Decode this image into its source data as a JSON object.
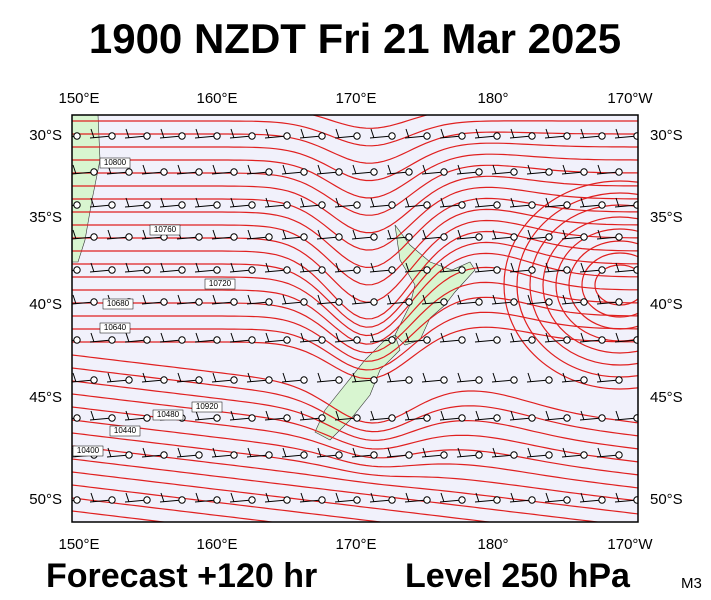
{
  "header": {
    "title": "1900 NZDT Fri 21 Mar 2025"
  },
  "map": {
    "top_labels": [
      "150°E",
      "160°E",
      "170°E",
      "180°",
      "170°W"
    ],
    "bottom_labels": [
      "150°E",
      "160°E",
      "170°E",
      "180°",
      "170°W"
    ],
    "left_labels": [
      "30°S",
      "35°S",
      "40°S",
      "45°S",
      "50°S"
    ],
    "right_labels": [
      "30°S",
      "35°S",
      "40°S",
      "45°S",
      "50°S"
    ],
    "contour_labels": [
      "10800",
      "10760",
      "10720",
      "10680",
      "10640",
      "10480",
      "10440",
      "10400",
      "10920"
    ]
  },
  "footer": {
    "forecast": "Forecast +120 hr",
    "level": "Level 250 hPa",
    "code": "M3"
  }
}
